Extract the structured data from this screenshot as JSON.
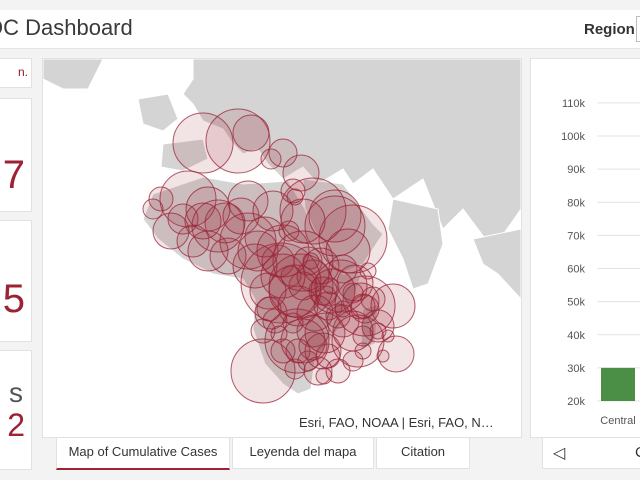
{
  "header": {
    "title": "OC Dashboard",
    "region_label": "Region"
  },
  "left_panel": {
    "top_text": "n.",
    "stats": [
      {
        "value": "7"
      },
      {
        "value": "5"
      },
      {
        "label": "s",
        "value": "2"
      }
    ]
  },
  "map": {
    "attribution": "Esri, FAO, NOAA | Esri, FAO, N…",
    "land_color": "#d4d4d4",
    "ocean_color": "#ffffff",
    "bubble_color": "#9b2335"
  },
  "tabs": [
    {
      "label": "Map of Cumulative Cases",
      "active": true
    },
    {
      "label": "Leyenda del mapa",
      "active": false
    },
    {
      "label": "Citation",
      "active": false
    }
  ],
  "chart_data": {
    "type": "bar",
    "categories": [
      "Central"
    ],
    "values": [
      30000
    ],
    "bar_color": "#4a8f45",
    "y_ticks": [
      "20k",
      "30k",
      "40k",
      "50k",
      "60k",
      "70k",
      "80k",
      "90k",
      "100k",
      "110k"
    ],
    "ylim": [
      20000,
      113000
    ]
  },
  "pager": {
    "prev_icon": "caret-left-icon",
    "next_label": "C"
  }
}
